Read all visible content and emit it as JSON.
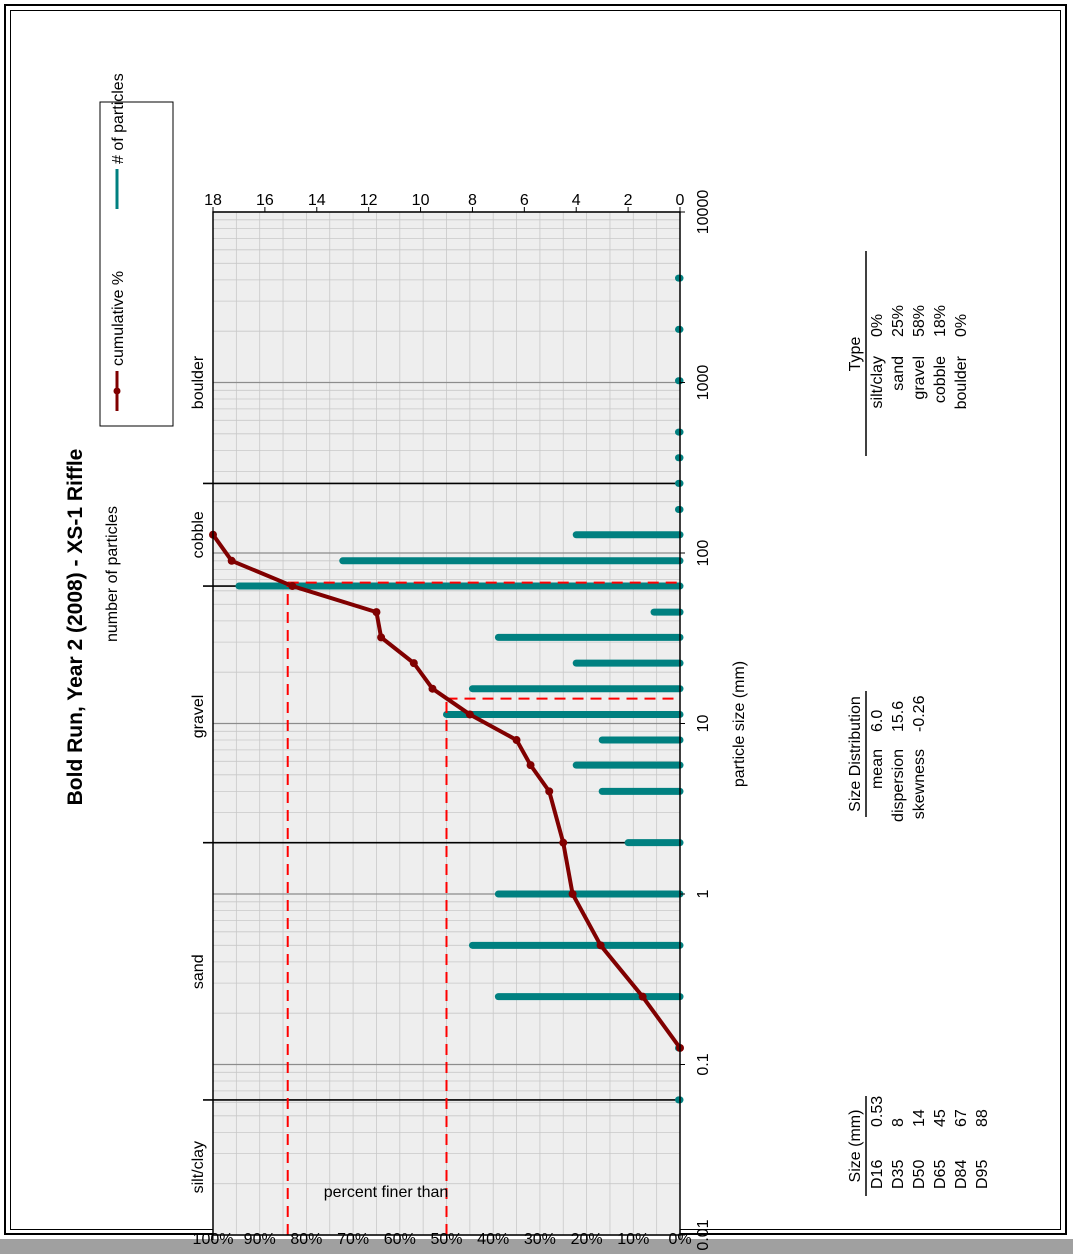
{
  "title": "Bold Run, Year 2 (2008) - XS-1 Riffle",
  "chart_data": {
    "type": "line",
    "title": "Bold Run, Year 2 (2008) - XS-1 Riffle",
    "xlabel": "particle size (mm)",
    "ylabel_left": "percent finer than",
    "ylabel_right": "number of particles",
    "x_scale": "log",
    "xlim": [
      0.01,
      10000
    ],
    "ylim_left": [
      0,
      100
    ],
    "ylim_right": [
      0,
      18
    ],
    "x_ticks": [
      "0.01",
      "0.1",
      "1",
      "10",
      "100",
      "1000",
      "10000"
    ],
    "y_ticks_left": [
      "0%",
      "10%",
      "20%",
      "30%",
      "40%",
      "50%",
      "60%",
      "70%",
      "80%",
      "90%",
      "100%"
    ],
    "y_ticks_right": [
      "0",
      "2",
      "4",
      "6",
      "8",
      "10",
      "12",
      "14",
      "16",
      "18"
    ],
    "grid": true,
    "legend_position": "top-right",
    "series": [
      {
        "name": "cumulative %",
        "color": "#800000",
        "x": [
          0.125,
          0.25,
          0.5,
          1,
          2,
          4,
          5.7,
          8,
          11.3,
          16,
          22.6,
          32,
          45,
          64,
          90,
          128
        ],
        "y": [
          0,
          8,
          17,
          23,
          25,
          28,
          32,
          35,
          45,
          53,
          57,
          64,
          65,
          83,
          96,
          100
        ]
      },
      {
        "name": "# of particles",
        "color": "#008080",
        "x": [
          0.062,
          0.125,
          0.25,
          0.5,
          1,
          2,
          4,
          5.7,
          8,
          11.3,
          16,
          22.6,
          32,
          45,
          64,
          90,
          128,
          180,
          256,
          362,
          512,
          1024,
          2048,
          4096
        ],
        "y": [
          0,
          0,
          7,
          8,
          7,
          2,
          3,
          4,
          3,
          9,
          8,
          4,
          7,
          1,
          17,
          13,
          4,
          0,
          0,
          0,
          0,
          0,
          0,
          0
        ]
      }
    ],
    "reference_lines": {
      "D50_x": 14,
      "D50_y": 50,
      "D84_x": 67,
      "D84_y": 84,
      "color": "#ff0000"
    },
    "class_boundaries": [
      0.062,
      2,
      64,
      256
    ],
    "class_labels": [
      {
        "label": "silt/clay",
        "x": 0.025
      },
      {
        "label": "sand",
        "x": 0.35
      },
      {
        "label": "gravel",
        "x": 11
      },
      {
        "label": "cobble",
        "x": 128
      },
      {
        "label": "boulder",
        "x": 1000
      }
    ]
  },
  "legend": {
    "cumulative_label": "cumulative %",
    "particles_label": "# of particles"
  },
  "size_table": {
    "header": "Size (mm)",
    "rows": [
      {
        "label": "D16",
        "value": "0.53"
      },
      {
        "label": "D35",
        "value": "8"
      },
      {
        "label": "D50",
        "value": "14"
      },
      {
        "label": "D65",
        "value": "45"
      },
      {
        "label": "D84",
        "value": "67"
      },
      {
        "label": "D95",
        "value": "88"
      }
    ]
  },
  "distribution_table": {
    "header": "Size Distribution",
    "rows": [
      {
        "label": "mean",
        "value": "6.0"
      },
      {
        "label": "dispersion",
        "value": "15.6"
      },
      {
        "label": "skewness",
        "value": "-0.26"
      }
    ]
  },
  "type_table": {
    "header": "Type",
    "rows": [
      {
        "label": "silt/clay",
        "value": "0%"
      },
      {
        "label": "sand",
        "value": "25%"
      },
      {
        "label": "gravel",
        "value": "58%"
      },
      {
        "label": "cobble",
        "value": "18%"
      },
      {
        "label": "boulder",
        "value": "0%"
      }
    ]
  }
}
